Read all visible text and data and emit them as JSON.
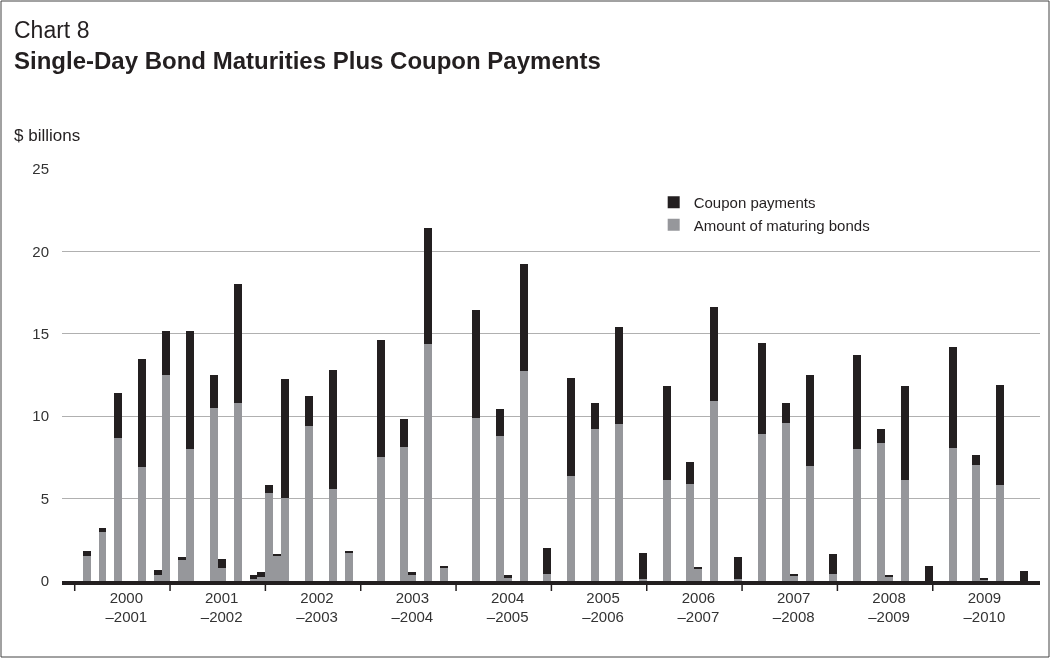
{
  "chart_data": {
    "type": "bar",
    "title": "Chart 8",
    "subtitle": "Single-Day Bond Maturities Plus Coupon Payments",
    "ylabel": "$ billions",
    "categories": [
      null,
      null,
      null,
      null,
      null,
      "2000\n–2001",
      null,
      null,
      null,
      null,
      null,
      null,
      null,
      null,
      null,
      null,
      null,
      "2001\n–2002",
      null,
      null,
      null,
      null,
      null,
      null,
      null,
      null,
      null,
      null,
      null,
      "2002\n–2003",
      null,
      null,
      null,
      null,
      null,
      null,
      null,
      null,
      null,
      null,
      null,
      "2003\n–2004",
      null,
      null,
      null,
      null,
      null,
      null,
      null,
      null,
      null,
      null,
      null,
      "2004\n–2005",
      null,
      null,
      null,
      null,
      null,
      null,
      null,
      null,
      null,
      null,
      null,
      "2005\n–2006",
      null,
      null,
      null,
      null,
      null,
      null,
      null,
      null,
      null,
      null,
      null,
      "2006\n–2007",
      null,
      null,
      null,
      null,
      null,
      null,
      null,
      null,
      null,
      null,
      null,
      "2007\n–2008",
      null,
      null,
      null,
      null,
      null,
      null,
      null,
      null,
      null,
      null,
      null,
      "2008\n–2009",
      null,
      null,
      null,
      null,
      null,
      null,
      null,
      null,
      null,
      null,
      null,
      "2009\n–2010",
      null,
      null,
      null,
      null,
      null,
      null
    ],
    "series": [
      {
        "name": "Amount of maturing bonds",
        "color": "#96979b",
        "values": [
          1.5,
          null,
          3.0,
          null,
          8.7,
          null,
          null,
          6.9,
          null,
          0.35,
          12.5,
          null,
          1.25,
          8.0,
          null,
          null,
          10.5,
          0.8,
          null,
          10.8,
          null,
          0.1,
          0.25,
          5.35,
          1.55,
          5.05,
          null,
          null,
          9.4,
          null,
          null,
          5.6,
          null,
          1.7,
          null,
          null,
          null,
          7.55,
          null,
          null,
          8.15,
          0.35,
          null,
          14.4,
          null,
          0.8,
          null,
          null,
          null,
          9.9,
          null,
          null,
          8.8,
          0.2,
          null,
          12.75,
          null,
          null,
          0.4,
          null,
          null,
          6.4,
          null,
          null,
          9.25,
          null,
          null,
          9.5,
          null,
          null,
          0.15,
          null,
          null,
          6.15,
          null,
          null,
          5.9,
          0.7,
          null,
          10.9,
          null,
          null,
          0.1,
          null,
          null,
          8.9,
          null,
          null,
          9.6,
          0.35,
          null,
          6.95,
          null,
          null,
          0.45,
          null,
          null,
          8.0,
          null,
          null,
          8.4,
          0.3,
          null,
          6.15,
          null,
          null,
          0,
          null,
          null,
          8.1,
          null,
          null,
          7.05,
          0.1,
          null,
          5.8,
          null,
          null,
          0,
          null
        ]
      },
      {
        "name": "Coupon payments",
        "color": "#231f20",
        "values": [
          0.3,
          null,
          0.2,
          null,
          2.7,
          null,
          null,
          6.6,
          null,
          0.3,
          2.7,
          null,
          0.2,
          7.2,
          null,
          null,
          2.0,
          0.55,
          null,
          7.2,
          null,
          0.25,
          0.3,
          0.45,
          0.1,
          7.2,
          null,
          null,
          1.85,
          null,
          null,
          7.2,
          null,
          0.15,
          null,
          null,
          null,
          7.05,
          null,
          null,
          1.7,
          0.2,
          null,
          7.05,
          null,
          0.1,
          null,
          null,
          null,
          6.55,
          null,
          null,
          1.65,
          0.15,
          null,
          6.5,
          null,
          null,
          1.6,
          null,
          null,
          5.9,
          null,
          null,
          1.55,
          null,
          null,
          5.9,
          null,
          null,
          1.55,
          null,
          null,
          5.7,
          null,
          null,
          1.35,
          0.15,
          null,
          5.7,
          null,
          null,
          1.35,
          null,
          null,
          5.55,
          null,
          null,
          1.2,
          0.05,
          null,
          5.55,
          null,
          null,
          1.2,
          null,
          null,
          5.7,
          null,
          null,
          0.85,
          0.05,
          null,
          5.7,
          null,
          null,
          0.9,
          null,
          null,
          6.1,
          null,
          null,
          0.6,
          0.05,
          null,
          6.1,
          null,
          null,
          0.6,
          null
        ]
      }
    ],
    "stacked": true,
    "ylim": [
      0,
      25
    ],
    "yticks": [
      0,
      5,
      10,
      15,
      20,
      25
    ],
    "grid": "y",
    "legend": "top right"
  }
}
